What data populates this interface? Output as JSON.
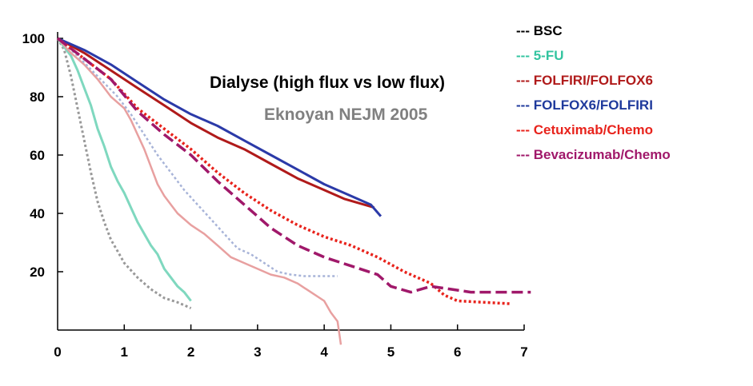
{
  "chart_data": {
    "type": "line",
    "title": "",
    "xlabel": "",
    "ylabel": "",
    "xlim": [
      0,
      7
    ],
    "ylim": [
      0,
      100
    ],
    "x_ticks": [
      "0",
      "1",
      "2",
      "3",
      "4",
      "5",
      "6",
      "7"
    ],
    "y_ticks": [
      "20",
      "40",
      "60",
      "80",
      "100"
    ],
    "y_tick_values": [
      20,
      40,
      60,
      80,
      100
    ],
    "grid": false,
    "legend_position": "top-right",
    "annotations": [
      {
        "text": "Dialyse (high flux vs low flux)",
        "color": "#000000"
      },
      {
        "text": "Eknoyan NEJM 2005",
        "color": "#808080"
      }
    ],
    "legend": [
      {
        "label": "--- BSC",
        "color": "#000000"
      },
      {
        "label": "--- 5-FU",
        "color": "#33c4a0"
      },
      {
        "label": "--- FOLFIRI/FOLFOX6",
        "color": "#b01a1a"
      },
      {
        "label": "--- FOLFOX6/FOLFIRI",
        "color": "#1f3a9c"
      },
      {
        "label": "--- Cetuximab/Chemo",
        "color": "#e8231c"
      },
      {
        "label": "--- Bevacizumab/Chemo",
        "color": "#a0186a"
      }
    ],
    "series": [
      {
        "color": "#999999",
        "style": "dotted",
        "width": 3,
        "points": [
          [
            0,
            100
          ],
          [
            0.1,
            96
          ],
          [
            0.2,
            87
          ],
          [
            0.3,
            76
          ],
          [
            0.4,
            65
          ],
          [
            0.5,
            54
          ],
          [
            0.6,
            44
          ],
          [
            0.7,
            37
          ],
          [
            0.8,
            31
          ],
          [
            0.9,
            27
          ],
          [
            1.0,
            23
          ],
          [
            1.2,
            18
          ],
          [
            1.4,
            14
          ],
          [
            1.6,
            11
          ],
          [
            1.8,
            9.5
          ],
          [
            2.0,
            7.5
          ]
        ]
      },
      {
        "color": "#7fd8bf",
        "style": "solid",
        "width": 3,
        "points": [
          [
            0,
            100
          ],
          [
            0.2,
            94
          ],
          [
            0.3,
            89
          ],
          [
            0.4,
            83
          ],
          [
            0.5,
            77
          ],
          [
            0.6,
            69
          ],
          [
            0.7,
            63
          ],
          [
            0.8,
            56
          ],
          [
            0.9,
            51
          ],
          [
            1.0,
            47
          ],
          [
            1.1,
            42
          ],
          [
            1.2,
            37
          ],
          [
            1.3,
            33
          ],
          [
            1.4,
            29
          ],
          [
            1.5,
            26
          ],
          [
            1.6,
            21
          ],
          [
            1.7,
            18
          ],
          [
            1.8,
            15
          ],
          [
            1.9,
            13
          ],
          [
            2.0,
            10
          ]
        ]
      },
      {
        "color": "#e8a0a0",
        "style": "solid",
        "width": 2.5,
        "points": [
          [
            0,
            100
          ],
          [
            0.2,
            95
          ],
          [
            0.4,
            91
          ],
          [
            0.6,
            86
          ],
          [
            0.8,
            80
          ],
          [
            1.0,
            76
          ],
          [
            1.1,
            72
          ],
          [
            1.2,
            67
          ],
          [
            1.3,
            62
          ],
          [
            1.4,
            56
          ],
          [
            1.5,
            50
          ],
          [
            1.6,
            46
          ],
          [
            1.7,
            43
          ],
          [
            1.8,
            40
          ],
          [
            2.0,
            36
          ],
          [
            2.2,
            33
          ],
          [
            2.4,
            29
          ],
          [
            2.6,
            25
          ],
          [
            2.8,
            23
          ],
          [
            3.0,
            21
          ],
          [
            3.2,
            19
          ],
          [
            3.4,
            18
          ],
          [
            3.6,
            16
          ],
          [
            3.8,
            13
          ],
          [
            4.0,
            10
          ],
          [
            4.1,
            6
          ],
          [
            4.2,
            3
          ],
          [
            4.25,
            -5
          ]
        ]
      },
      {
        "color": "#a8b4d8",
        "style": "dotted",
        "width": 2.5,
        "points": [
          [
            0,
            100
          ],
          [
            0.3,
            94
          ],
          [
            0.6,
            87
          ],
          [
            0.9,
            80
          ],
          [
            1.1,
            74
          ],
          [
            1.3,
            67
          ],
          [
            1.5,
            60
          ],
          [
            1.7,
            54
          ],
          [
            1.9,
            48
          ],
          [
            2.1,
            43
          ],
          [
            2.3,
            38
          ],
          [
            2.5,
            33
          ],
          [
            2.7,
            28
          ],
          [
            2.9,
            26
          ],
          [
            3.1,
            23
          ],
          [
            3.3,
            20
          ],
          [
            3.5,
            19
          ],
          [
            3.7,
            18.5
          ],
          [
            3.9,
            18.5
          ],
          [
            4.2,
            18.5
          ]
        ]
      },
      {
        "color": "#b01a1a",
        "style": "solid",
        "width": 3,
        "points": [
          [
            0,
            100
          ],
          [
            0.4,
            95
          ],
          [
            0.8,
            89
          ],
          [
            1.2,
            83
          ],
          [
            1.6,
            77
          ],
          [
            2.0,
            71
          ],
          [
            2.4,
            66
          ],
          [
            2.8,
            62
          ],
          [
            3.2,
            57
          ],
          [
            3.6,
            52
          ],
          [
            4.0,
            48
          ],
          [
            4.3,
            45
          ],
          [
            4.6,
            43
          ],
          [
            4.75,
            42
          ]
        ]
      },
      {
        "color": "#2b3aa8",
        "style": "solid",
        "width": 3,
        "points": [
          [
            0,
            100
          ],
          [
            0.4,
            96
          ],
          [
            0.8,
            91
          ],
          [
            1.2,
            85
          ],
          [
            1.6,
            79
          ],
          [
            2.0,
            74
          ],
          [
            2.4,
            70
          ],
          [
            2.8,
            65
          ],
          [
            3.2,
            60
          ],
          [
            3.6,
            55
          ],
          [
            4.0,
            50
          ],
          [
            4.4,
            46
          ],
          [
            4.7,
            43
          ],
          [
            4.85,
            39
          ]
        ]
      },
      {
        "color": "#e8231c",
        "style": "dotted",
        "width": 3.5,
        "points": [
          [
            0,
            100
          ],
          [
            0.4,
            93
          ],
          [
            0.8,
            86
          ],
          [
            1.2,
            76
          ],
          [
            1.6,
            69
          ],
          [
            2.0,
            62
          ],
          [
            2.4,
            54
          ],
          [
            2.8,
            47
          ],
          [
            3.2,
            41
          ],
          [
            3.6,
            36
          ],
          [
            4.0,
            32
          ],
          [
            4.4,
            29
          ],
          [
            4.8,
            25
          ],
          [
            5.2,
            20
          ],
          [
            5.6,
            16
          ],
          [
            5.8,
            12
          ],
          [
            6.0,
            10
          ],
          [
            6.4,
            9.5
          ],
          [
            6.8,
            9
          ]
        ]
      },
      {
        "color": "#a0186a",
        "style": "dashed",
        "width": 3.5,
        "points": [
          [
            0,
            100
          ],
          [
            0.4,
            93
          ],
          [
            0.8,
            86
          ],
          [
            1.2,
            75
          ],
          [
            1.6,
            67
          ],
          [
            2.0,
            60
          ],
          [
            2.4,
            51
          ],
          [
            2.8,
            43
          ],
          [
            3.2,
            35
          ],
          [
            3.6,
            29
          ],
          [
            4.0,
            25
          ],
          [
            4.4,
            22
          ],
          [
            4.8,
            19
          ],
          [
            5.0,
            15
          ],
          [
            5.3,
            13
          ],
          [
            5.6,
            15
          ],
          [
            5.9,
            14
          ],
          [
            6.2,
            13
          ],
          [
            6.5,
            13
          ],
          [
            7.1,
            13
          ]
        ]
      }
    ]
  }
}
